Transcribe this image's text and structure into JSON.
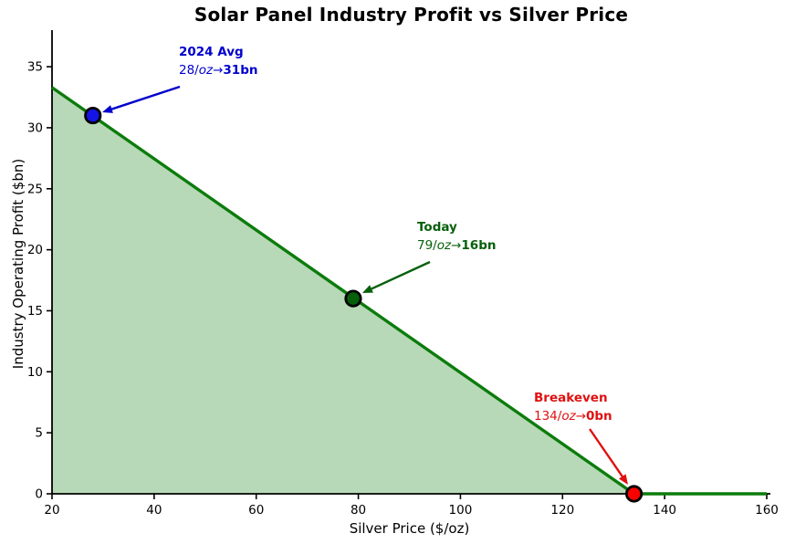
{
  "chart_data": {
    "type": "line",
    "title": "Solar Panel Industry Profit vs Silver Price",
    "xlabel": "Silver Price ($/oz)",
    "ylabel": "Industry Operating Profit ($bn)",
    "xlim": [
      20,
      160
    ],
    "ylim": [
      0,
      38
    ],
    "x_ticks": [
      20,
      40,
      60,
      80,
      100,
      120,
      140,
      160
    ],
    "y_ticks": [
      0,
      5,
      10,
      15,
      20,
      25,
      30,
      35
    ],
    "grid": false,
    "legend": false,
    "axis_color": "#000000",
    "series": [
      {
        "name": "industry-profit-line",
        "x": [
          20,
          134,
          160
        ],
        "y": [
          33.3,
          0,
          0
        ],
        "color": "#0c7c0c",
        "fill": true,
        "fill_color": "#b7d9b7"
      }
    ],
    "points": [
      {
        "id": "avg-2024",
        "x": 28,
        "y": 31,
        "color": "#1414e6"
      },
      {
        "id": "today",
        "x": 79,
        "y": 16,
        "color": "#06600a"
      },
      {
        "id": "breakeven",
        "x": 134,
        "y": 0,
        "color": "#fa0000"
      }
    ],
    "annotations": [
      {
        "id": "avg-2024",
        "label": "2024 Avg",
        "value_prefix": "28/",
        "value_unit": "oz",
        "value_arrow": "→",
        "value_bold": "31bn",
        "color": "#0000cd",
        "target": [
          28,
          31
        ]
      },
      {
        "id": "today",
        "label": "Today",
        "value_prefix": "79/",
        "value_unit": "oz",
        "value_arrow": "→",
        "value_bold": "16bn",
        "color": "#06600a",
        "target": [
          79,
          16
        ]
      },
      {
        "id": "breakeven",
        "label": "Breakeven",
        "value_prefix": "134/",
        "value_unit": "oz",
        "value_arrow": "→",
        "value_bold": "0bn",
        "color": "#e01010",
        "target": [
          134,
          0
        ]
      }
    ]
  }
}
